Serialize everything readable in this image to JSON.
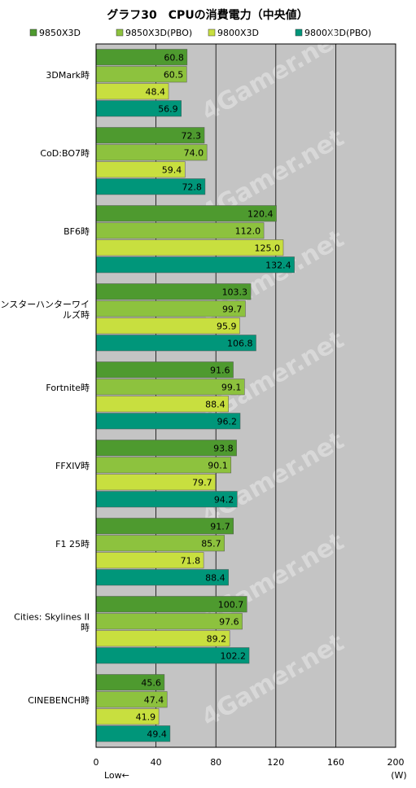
{
  "chart_data": {
    "type": "bar",
    "title": "グラフ30　CPUの消費電力（中央値）",
    "unit": "(W)",
    "direction_note": "Low←",
    "xlim": [
      0,
      200
    ],
    "x_ticks": [
      "0",
      "40",
      "80",
      "120",
      "160",
      "200"
    ],
    "grid": true,
    "legend_position": "top",
    "watermark": "4Gamer.net",
    "categories": [
      "3DMark時",
      "CoD:BO7時",
      "BF6時",
      "モンスターハンターワイルズ時",
      "Fortnite時",
      "FFXIV時",
      "F1 25時",
      "Cities: Skylines II 時",
      "CINEBENCH時"
    ],
    "category_lines": [
      [
        "3DMark時"
      ],
      [
        "CoD:BO7時"
      ],
      [
        "BF6時"
      ],
      [
        "モンスターハンターワイ",
        "ルズ時"
      ],
      [
        "Fortnite時"
      ],
      [
        "FFXIV時"
      ],
      [
        "F1 25時"
      ],
      [
        "Cities: Skylines II",
        "時"
      ],
      [
        "CINEBENCH時"
      ]
    ],
    "series": [
      {
        "name": "9850X3D",
        "color": "#4e9a2f",
        "values": [
          60.8,
          72.3,
          120.4,
          103.3,
          91.6,
          93.8,
          91.7,
          100.7,
          45.6
        ],
        "labels": [
          "60.8",
          "72.3",
          "120.4",
          "103.3",
          "91.6",
          "93.8",
          "91.7",
          "100.7",
          "45.6"
        ]
      },
      {
        "name": "9850X3D(PBO)",
        "color": "#8dc23e",
        "values": [
          60.5,
          74.0,
          112.0,
          99.7,
          99.1,
          90.1,
          85.7,
          97.6,
          47.4
        ],
        "labels": [
          "60.5",
          "74.0",
          "112.0",
          "99.7",
          "99.1",
          "90.1",
          "85.7",
          "97.6",
          "47.4"
        ]
      },
      {
        "name": "9800X3D",
        "color": "#c8df3f",
        "values": [
          48.4,
          59.4,
          125.0,
          95.9,
          88.4,
          79.7,
          71.8,
          89.2,
          41.9
        ],
        "labels": [
          "48.4",
          "59.4",
          "125.0",
          "95.9",
          "88.4",
          "79.7",
          "71.8",
          "89.2",
          "41.9"
        ]
      },
      {
        "name": "9800X3D(PBO)",
        "color": "#00967a",
        "values": [
          56.9,
          72.8,
          132.4,
          106.8,
          96.2,
          94.2,
          88.4,
          102.2,
          49.4
        ],
        "labels": [
          "56.9",
          "72.8",
          "132.4",
          "106.8",
          "96.2",
          "94.2",
          "88.4",
          "102.2",
          "49.4"
        ]
      }
    ],
    "colors": {
      "plot_background": "#c4c4c4",
      "frame": "#000000",
      "grid": "#000000"
    }
  }
}
